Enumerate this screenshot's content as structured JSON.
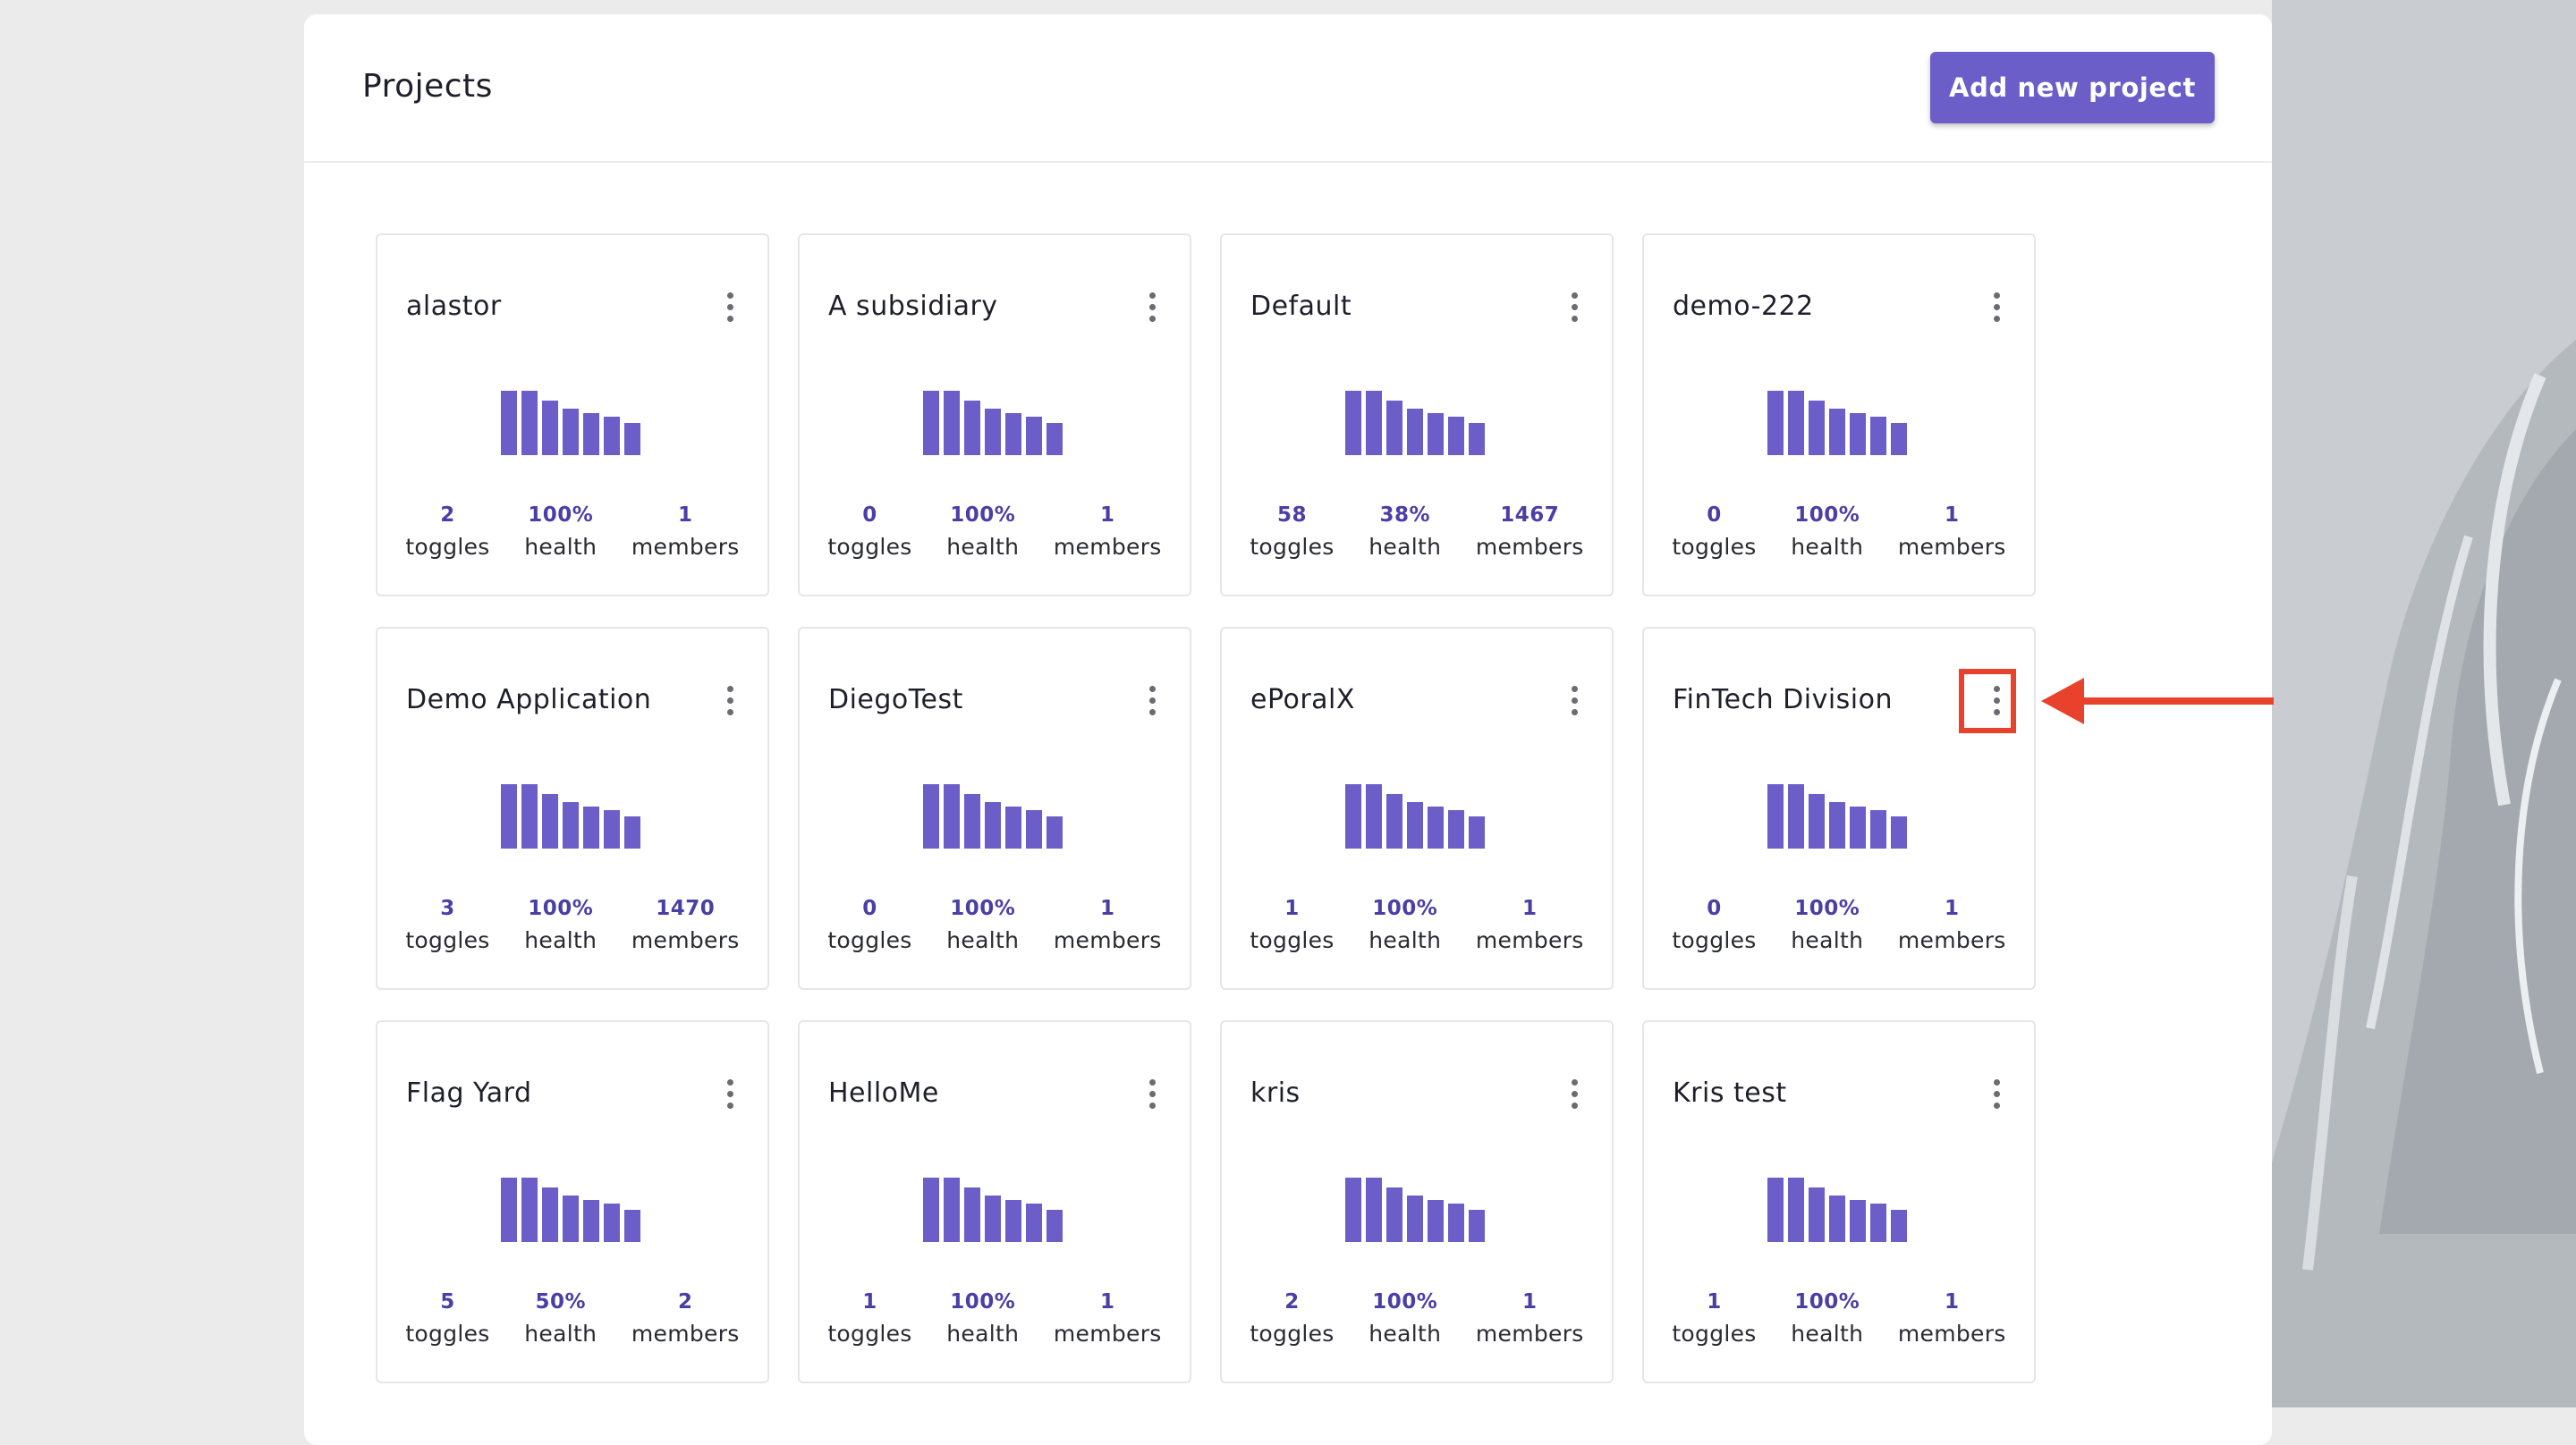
{
  "header": {
    "title": "Projects",
    "add_button_label": "Add new project"
  },
  "colors": {
    "accent": "#6b5ec8",
    "stat_value": "#4a3fa5",
    "annotation": "#e8412c"
  },
  "icons": {
    "card_menu": "more-vertical-icon",
    "annotation": "arrow-left-icon"
  },
  "sparkline_values": [
    1.0,
    1.0,
    0.85,
    0.72,
    0.65,
    0.6,
    0.5
  ],
  "projects": [
    {
      "name": "alastor",
      "toggles": "2",
      "health": "100%",
      "members": "1"
    },
    {
      "name": "A subsidiary",
      "toggles": "0",
      "health": "100%",
      "members": "1"
    },
    {
      "name": "Default",
      "toggles": "58",
      "health": "38%",
      "members": "1467"
    },
    {
      "name": "demo-222",
      "toggles": "0",
      "health": "100%",
      "members": "1"
    },
    {
      "name": "Demo Application",
      "toggles": "3",
      "health": "100%",
      "members": "1470"
    },
    {
      "name": "DiegoTest",
      "toggles": "0",
      "health": "100%",
      "members": "1"
    },
    {
      "name": "ePoralX",
      "toggles": "1",
      "health": "100%",
      "members": "1"
    },
    {
      "name": "FinTech Division",
      "toggles": "0",
      "health": "100%",
      "members": "1"
    },
    {
      "name": "Flag Yard",
      "toggles": "5",
      "health": "50%",
      "members": "2"
    },
    {
      "name": "HelloMe",
      "toggles": "1",
      "health": "100%",
      "members": "1"
    },
    {
      "name": "kris",
      "toggles": "2",
      "health": "100%",
      "members": "1"
    },
    {
      "name": "Kris test",
      "toggles": "1",
      "health": "100%",
      "members": "1"
    }
  ],
  "stat_labels": {
    "toggles": "toggles",
    "health": "health",
    "members": "members"
  }
}
